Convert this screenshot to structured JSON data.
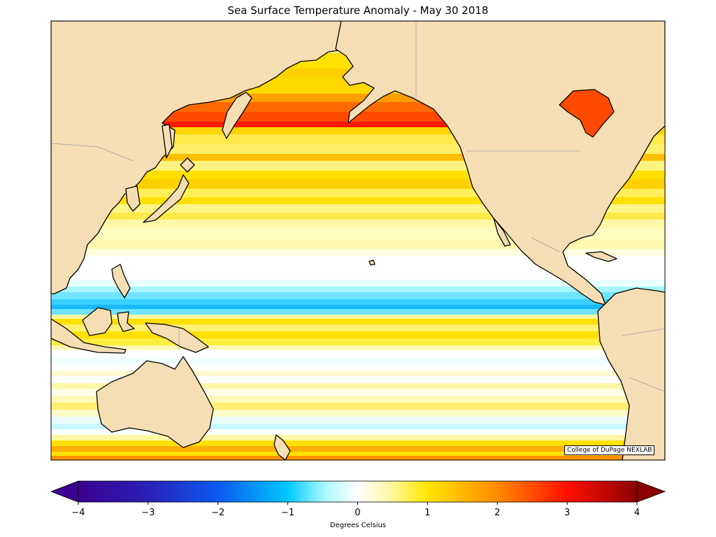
{
  "title": "Sea Surface Temperature Anomaly - May 30 2018",
  "credit": "College of DuPage NEXLAB",
  "colorbar": {
    "label": "Degrees Celsius",
    "min": -4,
    "max": 4,
    "ticks": [
      "−4",
      "−3",
      "−2",
      "−1",
      "0",
      "1",
      "2",
      "3",
      "4"
    ],
    "colors": [
      "#3a0090",
      "#0a4fe0",
      "#00c8ff",
      "#ffffff",
      "#ffe600",
      "#ff2400",
      "#8b0000"
    ]
  },
  "map": {
    "region": "Pacific Ocean",
    "land_color": "#f5deb3",
    "coast_color": "#000000",
    "border_color": "#a0a0a0"
  },
  "anomaly_bands": [
    {
      "lat_range": "55N-60N",
      "anomaly": 3.0
    },
    {
      "lat_range": "45N-55N",
      "anomaly": 1.5
    },
    {
      "lat_range": "30N-45N",
      "anomaly": 1.0
    },
    {
      "lat_range": "15N-30N",
      "anomaly": 0.3
    },
    {
      "lat_range": "5N-15N",
      "anomaly": -0.4
    },
    {
      "lat_range": "0-5N",
      "anomaly": -1.6
    },
    {
      "lat_range": "0-10S",
      "anomaly": 1.0
    },
    {
      "lat_range": "10S-40S",
      "anomaly": 0.3
    },
    {
      "lat_range": "40S-45S",
      "anomaly": 2.0
    }
  ]
}
